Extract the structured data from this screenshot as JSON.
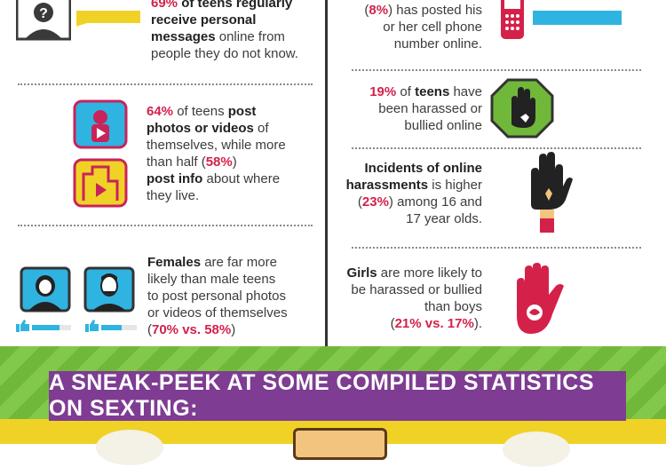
{
  "left": {
    "fact1": {
      "pct": "69%",
      "bold1": " of teens regularly",
      "bold2": "receive personal",
      "bold3": "messages",
      "rest1": " online from",
      "rest2": "people they do not know."
    },
    "fact2": {
      "pct": "64%",
      "t1": " of teens ",
      "b1": "post",
      "b2": "photos or videos",
      "t2": " of",
      "t3": "themselves, while more",
      "t4": "than half (",
      "pct2": "58%",
      "t5": ")",
      "b3": "post info",
      "t6": " about where",
      "t7": "they live."
    },
    "fact3": {
      "b1": "Females",
      "t1": " are far more",
      "t2": "likely than male teens",
      "t3": "to post personal photos",
      "t4": "or videos of themselves",
      "open": "(",
      "pct": "70% vs. 58%",
      "close": ")"
    },
    "female_bar_level": 0.7,
    "male_bar_level": 0.58
  },
  "right": {
    "fact1": {
      "open": "(",
      "pct": "8%",
      "t1": ") has posted his",
      "t2": "or her cell phone",
      "t3": "number online."
    },
    "fact2": {
      "pct": "19%",
      "t1": " of ",
      "b1": "teens",
      "t2": " have",
      "t3": "been harassed or",
      "t4": "bullied online"
    },
    "fact3": {
      "b1": "Incidents of online",
      "b2": "harassments",
      "t1": " is higher",
      "open": "(",
      "pct": "23%",
      "t2": ") among 16 and",
      "t3": "17 year olds."
    },
    "fact4": {
      "b1": "Girls",
      "t1": " are more likely to",
      "t2": "be harassed or bullied",
      "t3": "than boys",
      "open": "(",
      "pct": "21% vs. 17%",
      "close": ")."
    }
  },
  "banner": {
    "text": "A SNEAK-PEEK AT SOME COMPILED STATISTICS ON SEXTING:"
  },
  "colors": {
    "accent_red": "#d4214a",
    "purple": "#7e3c92",
    "green": "#6fb83a",
    "blue": "#2fb3e0",
    "yellow": "#f0d227"
  },
  "icons": [
    "unknown-person-icon",
    "video-profile-icon",
    "location-video-icon",
    "female-avatar-icon",
    "male-avatar-icon",
    "thumbs-up-icon",
    "cell-phone-icon",
    "stop-hand-octagon-icon",
    "raised-hand-icon",
    "red-hand-icon"
  ]
}
